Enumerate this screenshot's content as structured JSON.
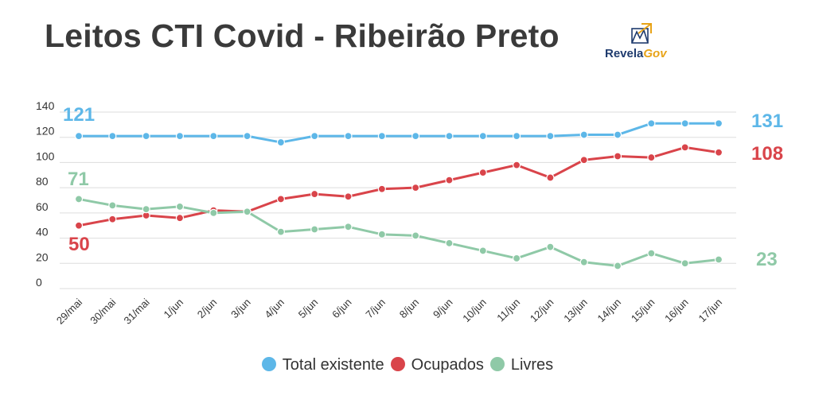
{
  "title": "Leitos CTI Covid - Ribeirão Preto",
  "logo": {
    "text_part1": "Revela",
    "text_part2": "Gov",
    "icon": "building-mark-icon"
  },
  "colors": {
    "total": "#5db7e8",
    "ocupados": "#d9444a",
    "livres": "#8fc9a7",
    "grid": "#dddddd",
    "title": "#3a3a3a"
  },
  "chart_data": {
    "type": "line",
    "title": "Leitos CTI Covid - Ribeirão Preto",
    "categories": [
      "29/mai",
      "30/mai",
      "31/mai",
      "1/jun",
      "2/jun",
      "3/jun",
      "4/jun",
      "5/jun",
      "6/jun",
      "7/jun",
      "8/jun",
      "9/jun",
      "10/jun",
      "11/jun",
      "12/jun",
      "13/jun",
      "14/jun",
      "15/jun",
      "16/jun",
      "17/jun"
    ],
    "y_ticks": [
      0,
      20,
      40,
      60,
      80,
      100,
      120,
      140
    ],
    "ylim": [
      0,
      140
    ],
    "grid": true,
    "legend_position": "bottom",
    "series": [
      {
        "key": "total",
        "name": "Total existente",
        "values": [
          121,
          121,
          121,
          121,
          121,
          121,
          116,
          121,
          121,
          121,
          121,
          121,
          121,
          121,
          121,
          122,
          122,
          131,
          131,
          131
        ],
        "start_label": "121",
        "end_label": "131"
      },
      {
        "key": "ocupados",
        "name": "Ocupados",
        "values": [
          50,
          55,
          58,
          56,
          62,
          61,
          71,
          75,
          73,
          79,
          80,
          86,
          92,
          98,
          88,
          102,
          105,
          104,
          112,
          108
        ],
        "start_label": "50",
        "end_label": "108"
      },
      {
        "key": "livres",
        "name": "Livres",
        "values": [
          71,
          66,
          63,
          65,
          60,
          61,
          45,
          47,
          49,
          43,
          42,
          36,
          30,
          24,
          33,
          21,
          18,
          28,
          20,
          23
        ],
        "start_label": "71",
        "end_label": "23"
      }
    ]
  }
}
